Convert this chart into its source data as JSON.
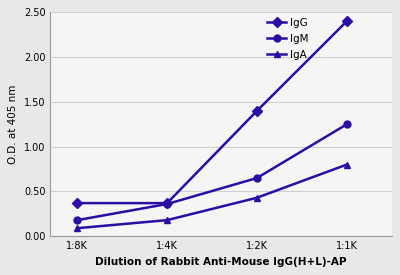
{
  "x_labels": [
    "1:8K",
    "1:4K",
    "1:2K",
    "1:1K"
  ],
  "x_values": [
    0,
    1,
    2,
    3
  ],
  "IgG": [
    0.37,
    0.37,
    1.4,
    2.4
  ],
  "IgM": [
    0.18,
    0.36,
    0.65,
    1.25
  ],
  "IgA": [
    0.09,
    0.18,
    0.43,
    0.8
  ],
  "ylabel": "O.D. at 405 nm",
  "xlabel": "Dilution of Rabbit Anti-Mouse IgG(H+L)-AP",
  "ylim": [
    0.0,
    2.5
  ],
  "yticks": [
    0.0,
    0.5,
    1.0,
    1.5,
    2.0,
    2.5
  ],
  "legend_labels": [
    "IgG",
    "IgM",
    "IgA"
  ],
  "IgG_marker": "D",
  "IgM_marker": "o",
  "IgA_marker": "^",
  "line_color": "#2B0DA6",
  "bg_color": "#e8e8e8",
  "plot_bg": "#f5f5f5",
  "grid_color": "#d0d0d0",
  "marker_size": 5,
  "line_width": 1.8
}
